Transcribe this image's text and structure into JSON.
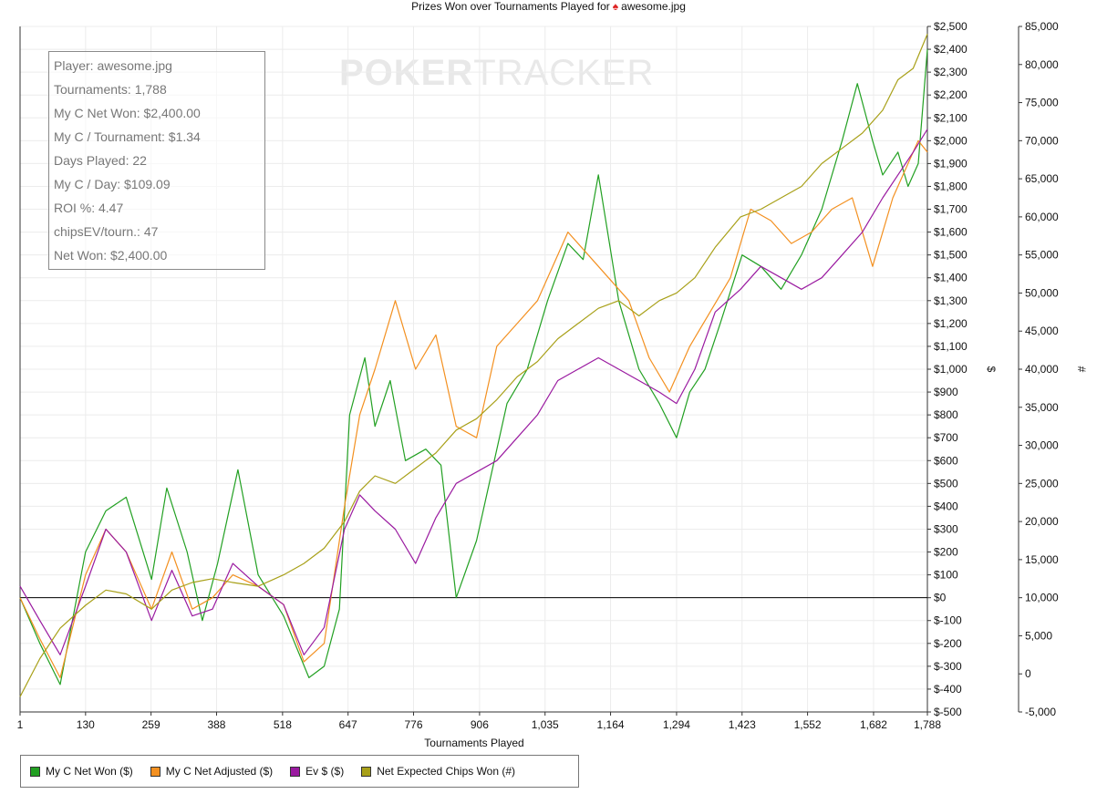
{
  "title_prefix": "Prizes Won over Tournaments Played for",
  "title_player": "awesome.jpg",
  "watermark": {
    "bold": "POKER",
    "thin": "TRACKER"
  },
  "stats": [
    "Player: awesome.jpg",
    "Tournaments: 1,788",
    "My C Net Won: $2,400.00",
    "My C / Tournament: $1.34",
    "Days Played: 22",
    "My C / Day: $109.09",
    "ROI %: 4.47",
    "chipsEV/tourn.: 47",
    "Net Won: $2,400.00"
  ],
  "chart_data": {
    "type": "line",
    "title": "Prizes Won over Tournaments Played for awesome.jpg",
    "xlabel": "Tournaments Played",
    "ylabel": "$",
    "y2label": "#",
    "xlim": [
      1,
      1788
    ],
    "ylim": [
      -500,
      2500
    ],
    "y2lim": [
      -5000,
      85000
    ],
    "x_ticks": [
      "1",
      "130",
      "259",
      "388",
      "518",
      "647",
      "776",
      "906",
      "1,035",
      "1,164",
      "1,294",
      "1,423",
      "1,552",
      "1,682",
      "1,788"
    ],
    "x_tick_values": [
      1,
      130,
      259,
      388,
      518,
      647,
      776,
      906,
      1035,
      1164,
      1294,
      1423,
      1552,
      1682,
      1788
    ],
    "y_ticks": [
      "$-500",
      "$-400",
      "$-300",
      "$-200",
      "$-100",
      "$0",
      "$100",
      "$200",
      "$300",
      "$400",
      "$500",
      "$600",
      "$700",
      "$800",
      "$900",
      "$1,000",
      "$1,100",
      "$1,200",
      "$1,300",
      "$1,400",
      "$1,500",
      "$1,600",
      "$1,700",
      "$1,800",
      "$1,900",
      "$2,000",
      "$2,100",
      "$2,200",
      "$2,300",
      "$2,400",
      "$2,500"
    ],
    "y_tick_values": [
      -500,
      -400,
      -300,
      -200,
      -100,
      0,
      100,
      200,
      300,
      400,
      500,
      600,
      700,
      800,
      900,
      1000,
      1100,
      1200,
      1300,
      1400,
      1500,
      1600,
      1700,
      1800,
      1900,
      2000,
      2100,
      2200,
      2300,
      2400,
      2500
    ],
    "y2_ticks": [
      "-5,000",
      "0",
      "5,000",
      "10,000",
      "15,000",
      "20,000",
      "25,000",
      "30,000",
      "35,000",
      "40,000",
      "45,000",
      "50,000",
      "55,000",
      "60,000",
      "65,000",
      "70,000",
      "75,000",
      "80,000",
      "85,000"
    ],
    "y2_tick_values": [
      -5000,
      0,
      5000,
      10000,
      15000,
      20000,
      25000,
      30000,
      35000,
      40000,
      45000,
      50000,
      55000,
      60000,
      65000,
      70000,
      75000,
      80000,
      85000
    ],
    "grid": true,
    "legend_position": "bottom-left",
    "series": [
      {
        "name": "My C Net Won ($)",
        "axis": "left",
        "color": "#22a022",
        "x": [
          1,
          40,
          80,
          130,
          170,
          210,
          260,
          290,
          330,
          360,
          390,
          430,
          470,
          520,
          570,
          600,
          630,
          650,
          680,
          700,
          730,
          760,
          800,
          830,
          860,
          900,
          930,
          960,
          1000,
          1040,
          1080,
          1110,
          1140,
          1180,
          1220,
          1260,
          1294,
          1320,
          1350,
          1380,
          1423,
          1460,
          1500,
          1540,
          1580,
          1620,
          1650,
          1680,
          1700,
          1730,
          1750,
          1770,
          1788
        ],
        "y": [
          0,
          -200,
          -380,
          200,
          380,
          440,
          80,
          480,
          200,
          -100,
          150,
          560,
          100,
          -80,
          -350,
          -300,
          -50,
          800,
          1050,
          750,
          950,
          600,
          650,
          580,
          0,
          250,
          550,
          850,
          1000,
          1300,
          1550,
          1480,
          1850,
          1300,
          1000,
          850,
          700,
          900,
          1000,
          1200,
          1500,
          1450,
          1350,
          1500,
          1700,
          2000,
          2250,
          2000,
          1850,
          1950,
          1800,
          1900,
          2400
        ]
      },
      {
        "name": "My C Net Adjusted ($)",
        "axis": "left",
        "color": "#f39020",
        "x": [
          1,
          40,
          80,
          130,
          170,
          210,
          260,
          300,
          340,
          380,
          420,
          470,
          520,
          560,
          600,
          640,
          670,
          700,
          740,
          780,
          820,
          860,
          900,
          940,
          980,
          1020,
          1050,
          1080,
          1120,
          1160,
          1200,
          1240,
          1280,
          1320,
          1360,
          1400,
          1440,
          1480,
          1520,
          1560,
          1600,
          1640,
          1680,
          1720,
          1750,
          1770,
          1788
        ],
        "y": [
          0,
          -180,
          -350,
          100,
          300,
          200,
          -50,
          200,
          -50,
          0,
          100,
          50,
          -30,
          -280,
          -200,
          400,
          800,
          1000,
          1300,
          1000,
          1150,
          750,
          700,
          1100,
          1200,
          1300,
          1450,
          1600,
          1500,
          1400,
          1300,
          1050,
          900,
          1100,
          1250,
          1400,
          1700,
          1650,
          1550,
          1600,
          1700,
          1750,
          1450,
          1750,
          1900,
          2000,
          1950
        ]
      },
      {
        "name": "Ev $ ($)",
        "axis": "left",
        "color": "#9a1aa0",
        "x": [
          1,
          40,
          80,
          130,
          170,
          210,
          260,
          300,
          340,
          380,
          420,
          470,
          520,
          560,
          600,
          640,
          670,
          700,
          740,
          780,
          820,
          860,
          900,
          940,
          980,
          1020,
          1060,
          1100,
          1140,
          1180,
          1220,
          1260,
          1294,
          1330,
          1370,
          1420,
          1460,
          1500,
          1540,
          1580,
          1620,
          1660,
          1700,
          1730,
          1760,
          1788
        ],
        "y": [
          50,
          -100,
          -250,
          50,
          300,
          200,
          -100,
          120,
          -80,
          -50,
          150,
          50,
          -30,
          -250,
          -130,
          300,
          450,
          380,
          300,
          150,
          350,
          500,
          550,
          600,
          700,
          800,
          950,
          1000,
          1050,
          1000,
          950,
          900,
          850,
          1000,
          1250,
          1350,
          1450,
          1400,
          1350,
          1400,
          1500,
          1600,
          1750,
          1850,
          1950,
          2050
        ]
      },
      {
        "name": "Net Expected Chips Won (#)",
        "axis": "right",
        "color": "#a8a018",
        "x": [
          1,
          40,
          80,
          130,
          170,
          210,
          260,
          300,
          340,
          380,
          420,
          470,
          520,
          560,
          600,
          640,
          670,
          700,
          740,
          780,
          820,
          860,
          900,
          940,
          980,
          1020,
          1060,
          1100,
          1140,
          1180,
          1220,
          1260,
          1294,
          1330,
          1370,
          1420,
          1460,
          1500,
          1540,
          1580,
          1620,
          1660,
          1700,
          1730,
          1760,
          1788
        ],
        "y": [
          -3000,
          2000,
          6000,
          9000,
          11000,
          10500,
          8500,
          11000,
          12000,
          12500,
          12000,
          11500,
          13000,
          14500,
          16500,
          20000,
          24000,
          26000,
          25000,
          27000,
          29000,
          32000,
          33500,
          36000,
          39000,
          41000,
          44000,
          46000,
          48000,
          49000,
          47000,
          49000,
          50000,
          52000,
          56000,
          60000,
          61000,
          62500,
          64000,
          67000,
          69000,
          71000,
          74000,
          78000,
          79500,
          84000
        ]
      }
    ]
  }
}
